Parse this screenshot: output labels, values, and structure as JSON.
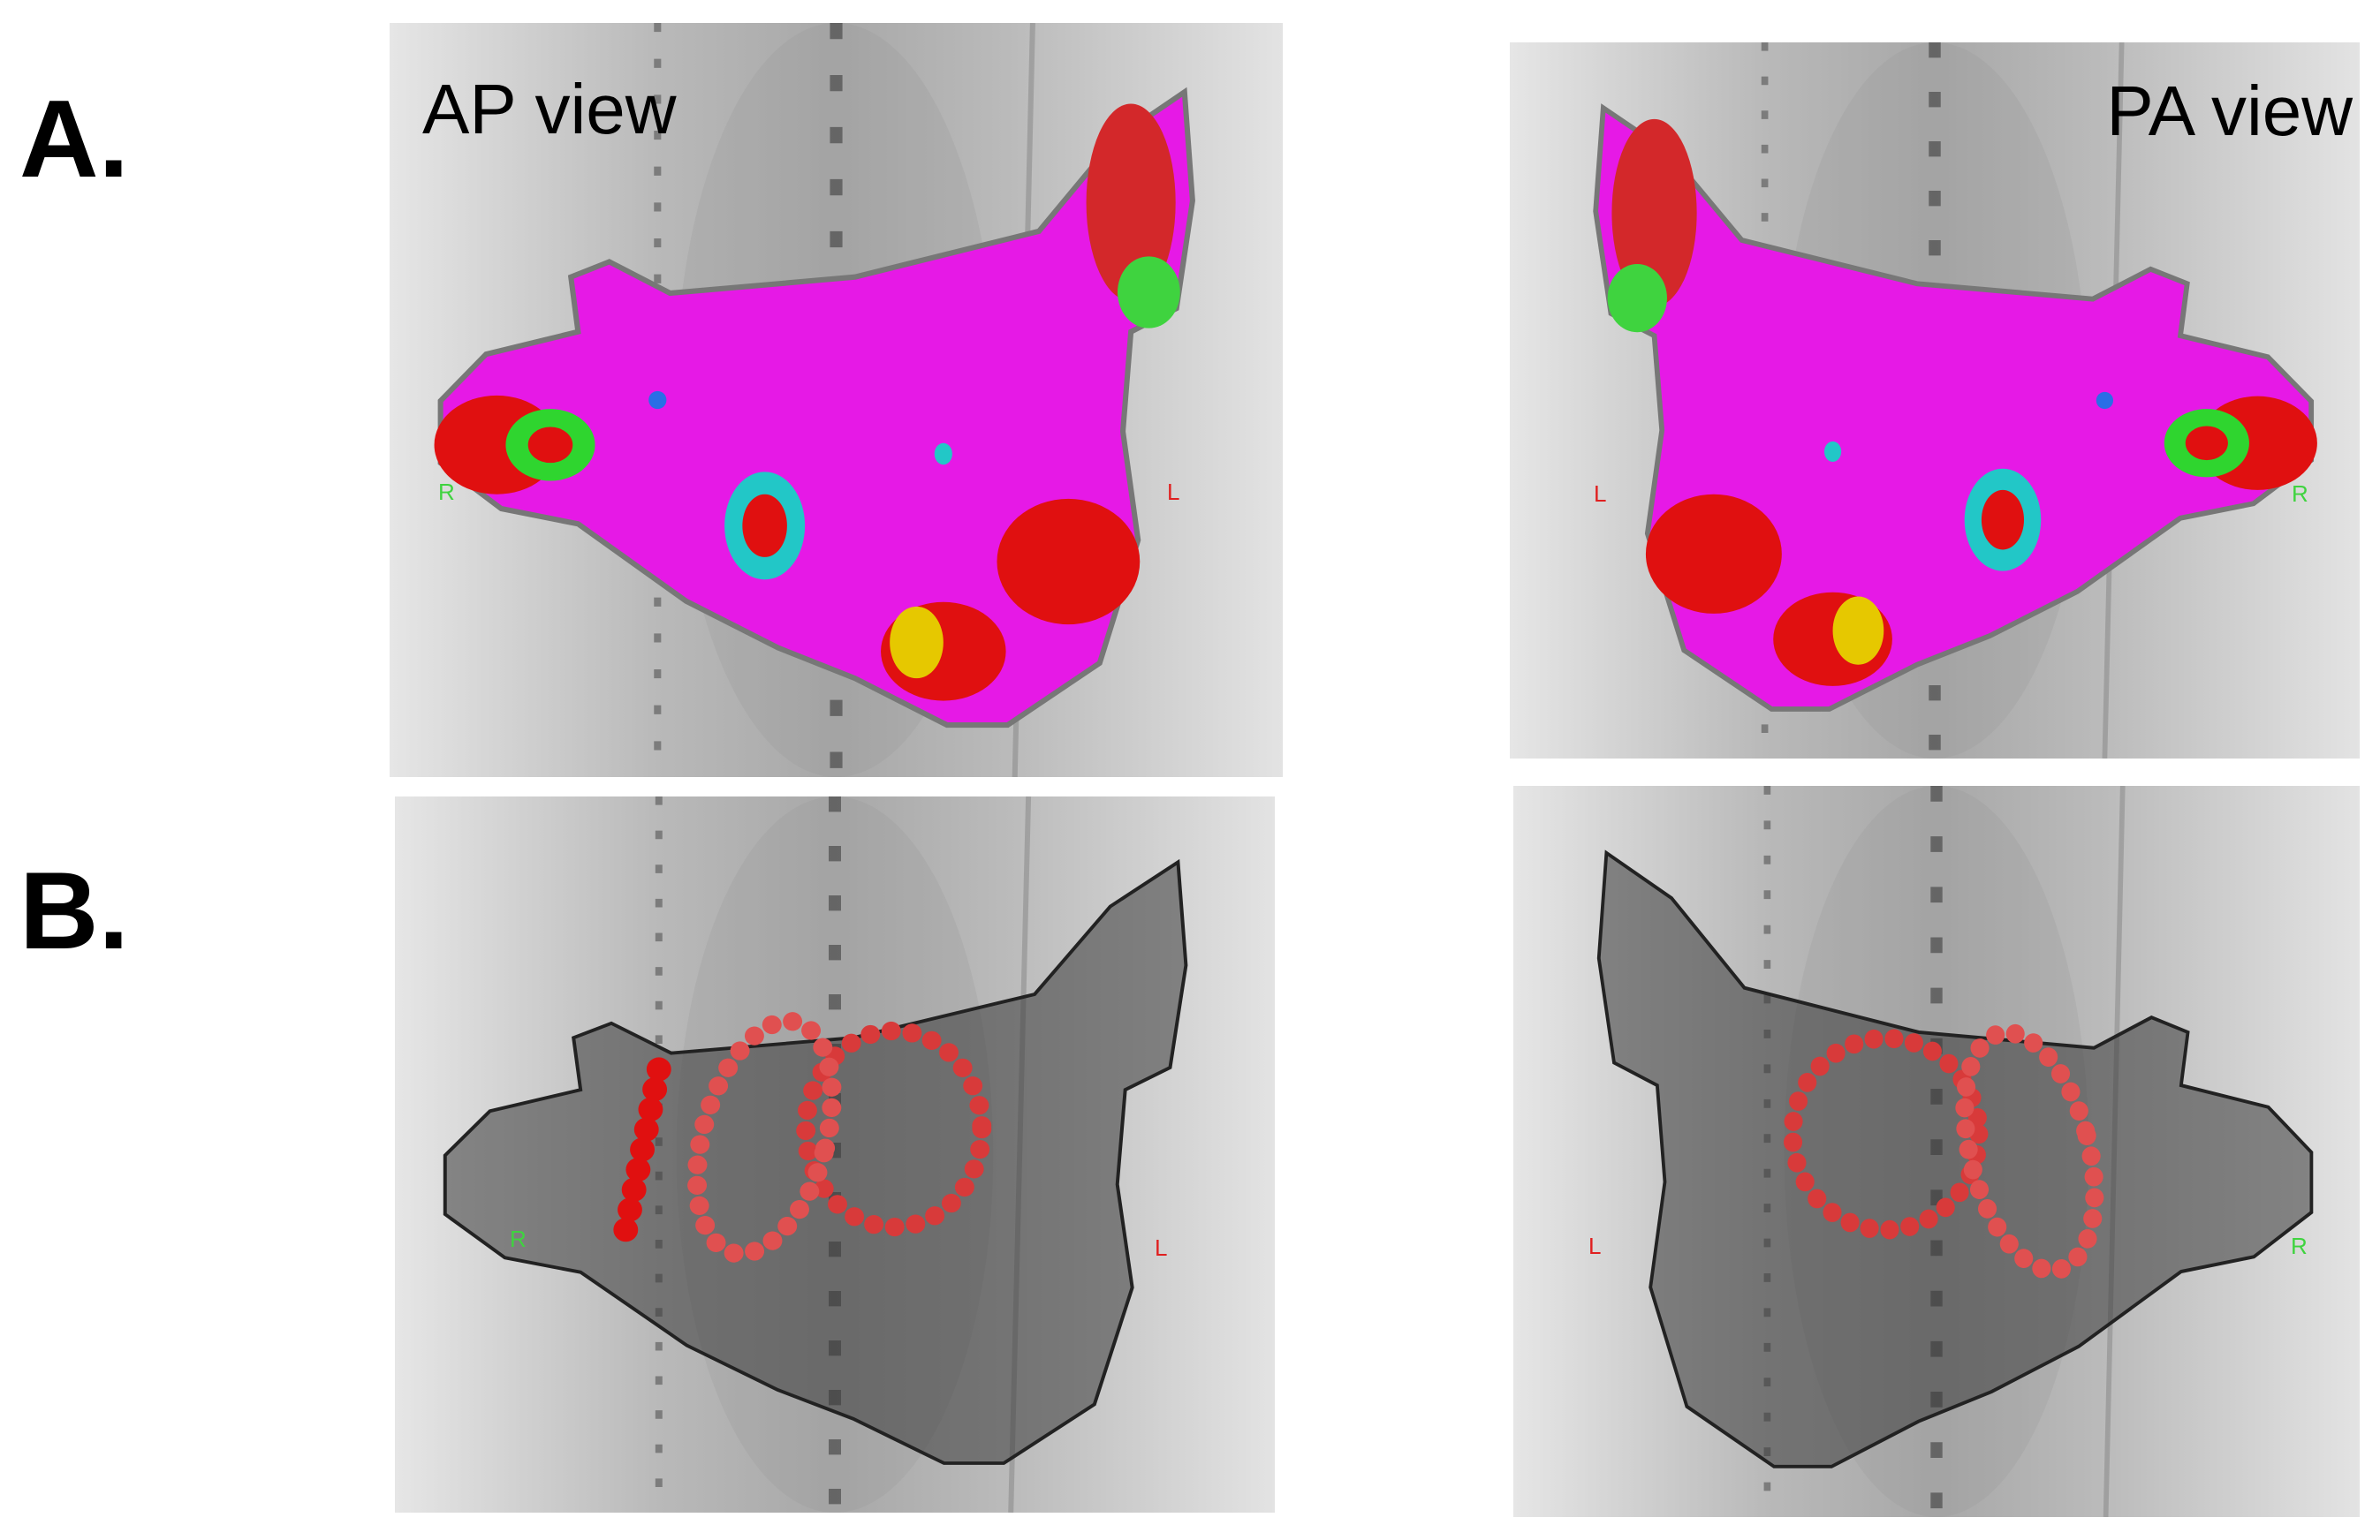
{
  "figure": {
    "panels": [
      {
        "label": "A.",
        "views": [
          {
            "title": "AP view",
            "markers": [
              "R",
              "L"
            ]
          },
          {
            "title": "PA view",
            "markers": [
              "L",
              "R"
            ]
          }
        ]
      },
      {
        "label": "B.",
        "views": [
          {
            "markers": [
              "R",
              "L"
            ]
          },
          {
            "markers": [
              "L",
              "R"
            ]
          }
        ]
      }
    ]
  }
}
